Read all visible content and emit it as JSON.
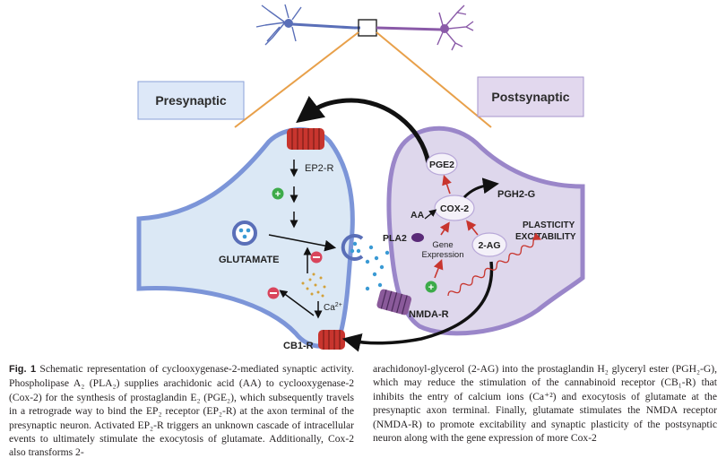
{
  "figure": {
    "pre_label": "Presynaptic",
    "post_label": "Postsynaptic",
    "ep2r": "EP2-R",
    "glutamate": "GLUTAMATE",
    "ca": "Ca",
    "ca_sup": "2+",
    "cb1r": "CB1-R",
    "pge2": "PGE2",
    "aa": "AA",
    "pla2": "PLA2",
    "cox2": "COX-2",
    "pgh2g": "PGH2-G",
    "gene_expression_1": "Gene",
    "gene_expression_2": "Expression",
    "two_ag": "2-AG",
    "plasticity": "PLASTICITY",
    "excitability": "EXCITABILITY",
    "nmdar": "NMDA-R",
    "colors": {
      "pre_fill": "#dbe8f5",
      "pre_stroke": "#7c95d8",
      "post_fill": "#ded7ec",
      "post_stroke": "#9a86c9",
      "receptor_red": "#c8352e",
      "nmda_purple": "#8a5a9a",
      "orange_line": "#e8a04a",
      "glutamate_dot": "#3a9ad4",
      "plus_green": "#3dab4a",
      "minus_red": "#d9455c"
    }
  },
  "caption": {
    "fig_label": "Fig. 1",
    "left": " Schematic representation of cyclooxygenase-2-mediated synaptic activity. Phospholipase A₂ (PLA₂) supplies arachidonic acid (AA) to cyclooxygenase-2 (Cox-2) for the synthesis of prostaglandin E₂ (PGE₂), which subsequently travels in a retrograde way to bind the EP₂ receptor (EP₂-R) at the axon terminal of the presynaptic neuron. Activated EP₂-R triggers an unknown cascade of intracellular events to ultimately stimulate the exocytosis of glutamate. Additionally, Cox-2 also transforms 2-",
    "right": "arachidonoyl-glycerol (2-AG) into the prostaglandin H₂ glyceryl ester (PGH₂-G), which may reduce the stimulation of the cannabinoid receptor (CB₁-R) that inhibits the entry of calcium ions (Ca⁺²) and exocytosis of glutamate at the presynaptic axon terminal. Finally, glutamate stimulates the NMDA receptor (NMDA-R) to promote excitability and synaptic plasticity of the postsynaptic neuron along with the gene expression of more Cox-2"
  }
}
